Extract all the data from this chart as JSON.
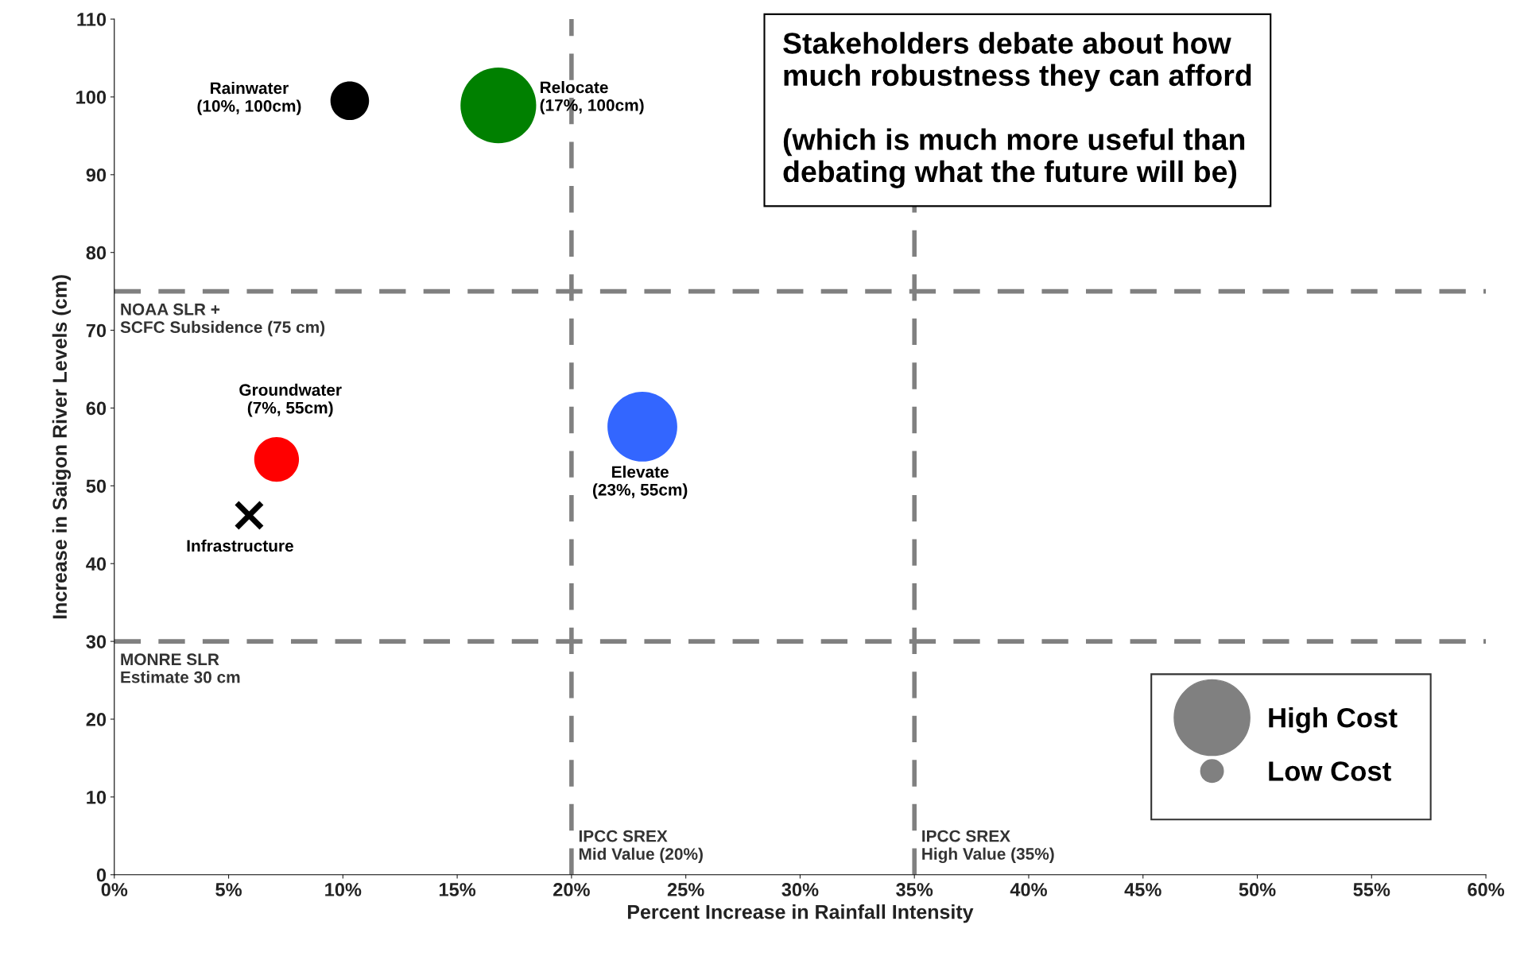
{
  "chart_data": {
    "type": "bubble",
    "xlabel": "Percent Increase in Rainfall Intensity",
    "ylabel": "Increase in Saigon River Levels (cm)",
    "xlim": [
      0,
      60
    ],
    "ylim": [
      0,
      110
    ],
    "xticks": [
      {
        "value": 0,
        "label": "0%"
      },
      {
        "value": 5,
        "label": "5%"
      },
      {
        "value": 10,
        "label": "10%"
      },
      {
        "value": 15,
        "label": "15%"
      },
      {
        "value": 20,
        "label": "20%"
      },
      {
        "value": 25,
        "label": "25%"
      },
      {
        "value": 30,
        "label": "30%"
      },
      {
        "value": 35,
        "label": "35%"
      },
      {
        "value": 40,
        "label": "40%"
      },
      {
        "value": 45,
        "label": "45%"
      },
      {
        "value": 50,
        "label": "50%"
      },
      {
        "value": 55,
        "label": "55%"
      },
      {
        "value": 60,
        "label": "60%"
      }
    ],
    "yticks": [
      0,
      10,
      20,
      30,
      40,
      50,
      60,
      70,
      80,
      90,
      100,
      110
    ],
    "grid": false,
    "series": [
      {
        "x": [
          10.3,
          16.8,
          7.1,
          23.1
        ],
        "values": [
          99.5,
          98.9,
          53.4,
          57.6
        ],
        "sizes": [
          0.26,
          1,
          0.35,
          0.85
        ],
        "colors": [
          "#000000",
          "#008000",
          "#ff0000",
          "#3366ff"
        ]
      },
      {
        "type": "scatter",
        "marker": "cross",
        "color": "#000000",
        "x": [
          5.9
        ],
        "values": [
          46.2
        ]
      }
    ],
    "size_legend": [
      "High Cost",
      "Low Cost"
    ],
    "ref_lines": [
      {
        "axis": "y",
        "value": 75,
        "label": "NOAA SLR +\nSCFC Subsidence (75 cm)",
        "color": "#808080",
        "line_style": "dashed"
      },
      {
        "axis": "y",
        "value": 30,
        "label": "MONRE SLR\nEstimate 30 cm",
        "color": "#808080",
        "line_style": "dashed"
      },
      {
        "axis": "x",
        "value": 20,
        "label": "IPCC SREX\nMid Value (20%)",
        "color": "#808080",
        "line_style": "dashed"
      },
      {
        "axis": "x",
        "value": 35,
        "label": "IPCC SREX\nHigh Value (35%)",
        "color": "#808080",
        "line_style": "dashed"
      }
    ],
    "annotations": [
      {
        "text": "Rainwater\n(10%, 100cm)",
        "x": 10.3,
        "y": 99.5
      },
      {
        "text": "Relocate\n(17%, 100cm)",
        "x": 16.8,
        "y": 98.9
      },
      {
        "text": "Groundwater\n(7%, 55cm)",
        "x": 7.1,
        "y": 53.4
      },
      {
        "text": "Elevate\n(23%, 55cm)",
        "x": 23.1,
        "y": 57.6
      },
      {
        "text": "Infrastructure",
        "x": 5.9,
        "y": 46.2
      },
      "Stakeholders debate about how\nmuch robustness they can afford\n\n(which is much more useful than\ndebating what the future will be)"
    ]
  }
}
